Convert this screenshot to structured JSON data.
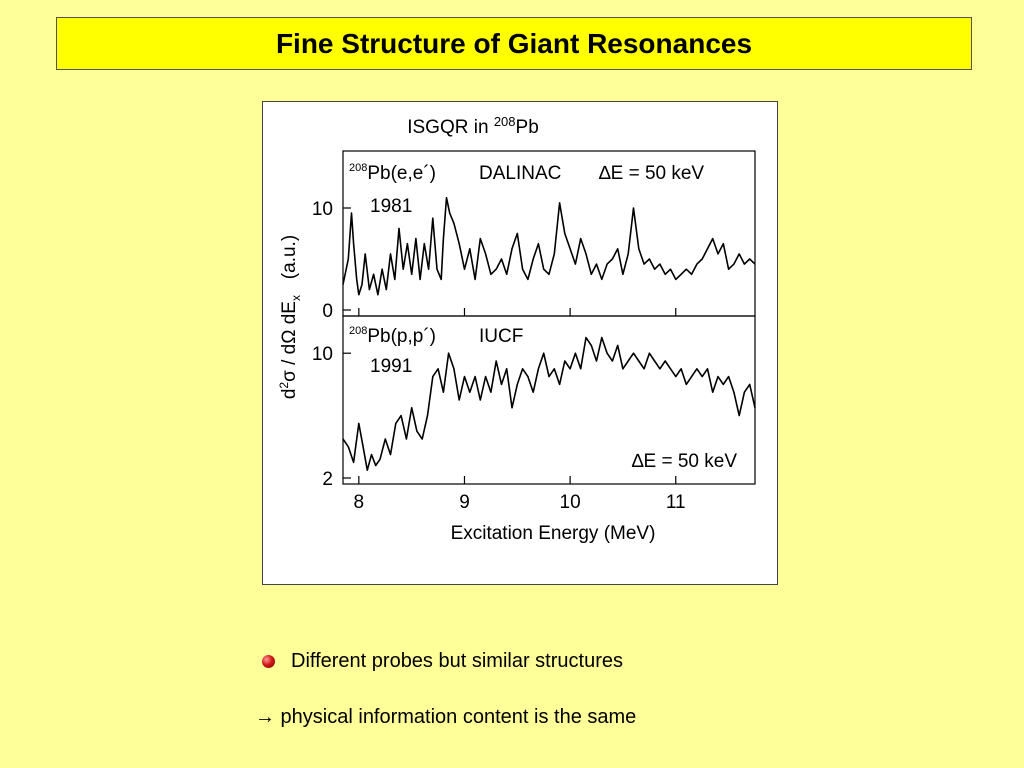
{
  "slide": {
    "title": "Fine Structure of Giant Resonances",
    "bullet": "Different probes but similar structures",
    "conclusion_arrow": "→",
    "conclusion": " physical information content is the same"
  },
  "chart_data": {
    "type": "line",
    "title": "ISGQR in ²⁰⁸Pb",
    "title_main": "ISGQR in ",
    "title_sup": "208",
    "title_suffix": "Pb",
    "xlabel": "Excitation Energy (MeV)",
    "ylabel_parts": [
      "d",
      "2",
      "σ / dΩ dE",
      "x",
      "   (a.u.)"
    ],
    "xlim": [
      7.85,
      11.75
    ],
    "x_ticks": [
      8,
      9,
      10,
      11
    ],
    "x_tick_labels": [
      "8",
      "9",
      "10",
      "11"
    ],
    "grid": false,
    "panels": [
      {
        "name": "208Pb(e,e′) DALINAC 1981",
        "label_sup": "208",
        "label": "Pb(e,e´)",
        "facility": "DALINAC",
        "resolution": "∆E = 50 keV",
        "year": "1981",
        "ylim": [
          0,
          15
        ],
        "y_ticks": [
          0,
          10
        ],
        "y_tick_labels": [
          "0",
          "10"
        ],
        "x": [
          7.85,
          7.9,
          7.93,
          7.95,
          7.98,
          8.0,
          8.03,
          8.06,
          8.1,
          8.14,
          8.18,
          8.22,
          8.26,
          8.3,
          8.34,
          8.38,
          8.42,
          8.46,
          8.5,
          8.54,
          8.58,
          8.62,
          8.66,
          8.7,
          8.74,
          8.78,
          8.8,
          8.83,
          8.86,
          8.9,
          8.95,
          9.0,
          9.05,
          9.1,
          9.15,
          9.2,
          9.25,
          9.3,
          9.35,
          9.4,
          9.45,
          9.5,
          9.55,
          9.6,
          9.65,
          9.7,
          9.75,
          9.8,
          9.85,
          9.9,
          9.95,
          10.0,
          10.05,
          10.1,
          10.15,
          10.2,
          10.25,
          10.3,
          10.35,
          10.4,
          10.45,
          10.5,
          10.55,
          10.6,
          10.65,
          10.7,
          10.75,
          10.8,
          10.85,
          10.9,
          10.95,
          11.0,
          11.05,
          11.1,
          11.15,
          11.2,
          11.25,
          11.3,
          11.35,
          11.4,
          11.45,
          11.5,
          11.55,
          11.6,
          11.65,
          11.7,
          11.75
        ],
        "values": [
          2.5,
          5.0,
          9.5,
          6.5,
          3.0,
          1.5,
          2.5,
          5.5,
          2.0,
          3.5,
          1.5,
          4.0,
          2.0,
          5.5,
          3.0,
          8.0,
          4.0,
          6.5,
          3.5,
          7.0,
          3.0,
          6.5,
          4.0,
          9.0,
          4.0,
          3.0,
          7.0,
          11.0,
          9.5,
          8.5,
          6.5,
          4.0,
          6.0,
          3.0,
          7.0,
          5.5,
          3.5,
          4.0,
          5.0,
          3.5,
          6.0,
          7.5,
          4.0,
          3.0,
          5.0,
          6.5,
          4.0,
          3.5,
          5.5,
          10.5,
          7.5,
          6.0,
          4.5,
          7.0,
          5.5,
          3.5,
          4.5,
          3.0,
          4.5,
          5.0,
          6.0,
          3.5,
          5.5,
          10.0,
          6.0,
          4.5,
          5.0,
          4.0,
          4.5,
          3.5,
          4.0,
          3.0,
          3.5,
          4.0,
          3.5,
          4.5,
          5.0,
          6.0,
          7.0,
          5.5,
          6.5,
          4.0,
          4.5,
          5.5,
          4.5,
          5.0,
          4.5
        ]
      },
      {
        "name": "208Pb(p,p′) IUCF 1991",
        "label_sup": "208",
        "label": "Pb(p,p´)",
        "facility": "IUCF",
        "resolution": "∆E = 50 keV",
        "year": "1991",
        "ylim": [
          2,
          12
        ],
        "y_ticks": [
          2,
          10
        ],
        "y_tick_labels": [
          "2",
          "10"
        ],
        "x": [
          7.85,
          7.9,
          7.95,
          8.0,
          8.04,
          8.08,
          8.12,
          8.16,
          8.2,
          8.25,
          8.3,
          8.35,
          8.4,
          8.45,
          8.5,
          8.55,
          8.6,
          8.65,
          8.7,
          8.75,
          8.8,
          8.85,
          8.9,
          8.95,
          9.0,
          9.05,
          9.1,
          9.15,
          9.2,
          9.25,
          9.3,
          9.35,
          9.4,
          9.45,
          9.5,
          9.55,
          9.6,
          9.65,
          9.7,
          9.75,
          9.8,
          9.85,
          9.9,
          9.95,
          10.0,
          10.05,
          10.1,
          10.15,
          10.2,
          10.25,
          10.3,
          10.35,
          10.4,
          10.45,
          10.5,
          10.55,
          10.6,
          10.65,
          10.7,
          10.75,
          10.8,
          10.85,
          10.9,
          10.95,
          11.0,
          11.05,
          11.1,
          11.15,
          11.2,
          11.25,
          11.3,
          11.35,
          11.4,
          11.45,
          11.5,
          11.55,
          11.6,
          11.65,
          11.7,
          11.75
        ],
        "values": [
          4.5,
          4.0,
          3.0,
          5.5,
          4.0,
          2.5,
          3.5,
          2.8,
          3.2,
          4.5,
          3.5,
          5.5,
          6.0,
          4.5,
          6.5,
          5.0,
          4.5,
          6.0,
          8.5,
          9.0,
          7.5,
          10.0,
          9.0,
          7.0,
          8.5,
          7.5,
          8.5,
          7.0,
          8.5,
          7.5,
          9.5,
          8.0,
          9.0,
          6.5,
          8.0,
          9.0,
          8.5,
          7.5,
          9.0,
          10.0,
          8.5,
          9.0,
          8.0,
          9.5,
          9.0,
          10.0,
          9.0,
          11.0,
          10.5,
          9.5,
          11.0,
          10.0,
          9.5,
          10.5,
          9.0,
          9.5,
          10.0,
          9.5,
          9.0,
          10.0,
          9.5,
          9.0,
          9.5,
          9.0,
          8.5,
          9.0,
          8.0,
          8.5,
          9.0,
          8.5,
          9.0,
          7.5,
          8.5,
          8.0,
          8.5,
          7.5,
          6.0,
          7.5,
          8.0,
          6.5
        ]
      }
    ]
  }
}
